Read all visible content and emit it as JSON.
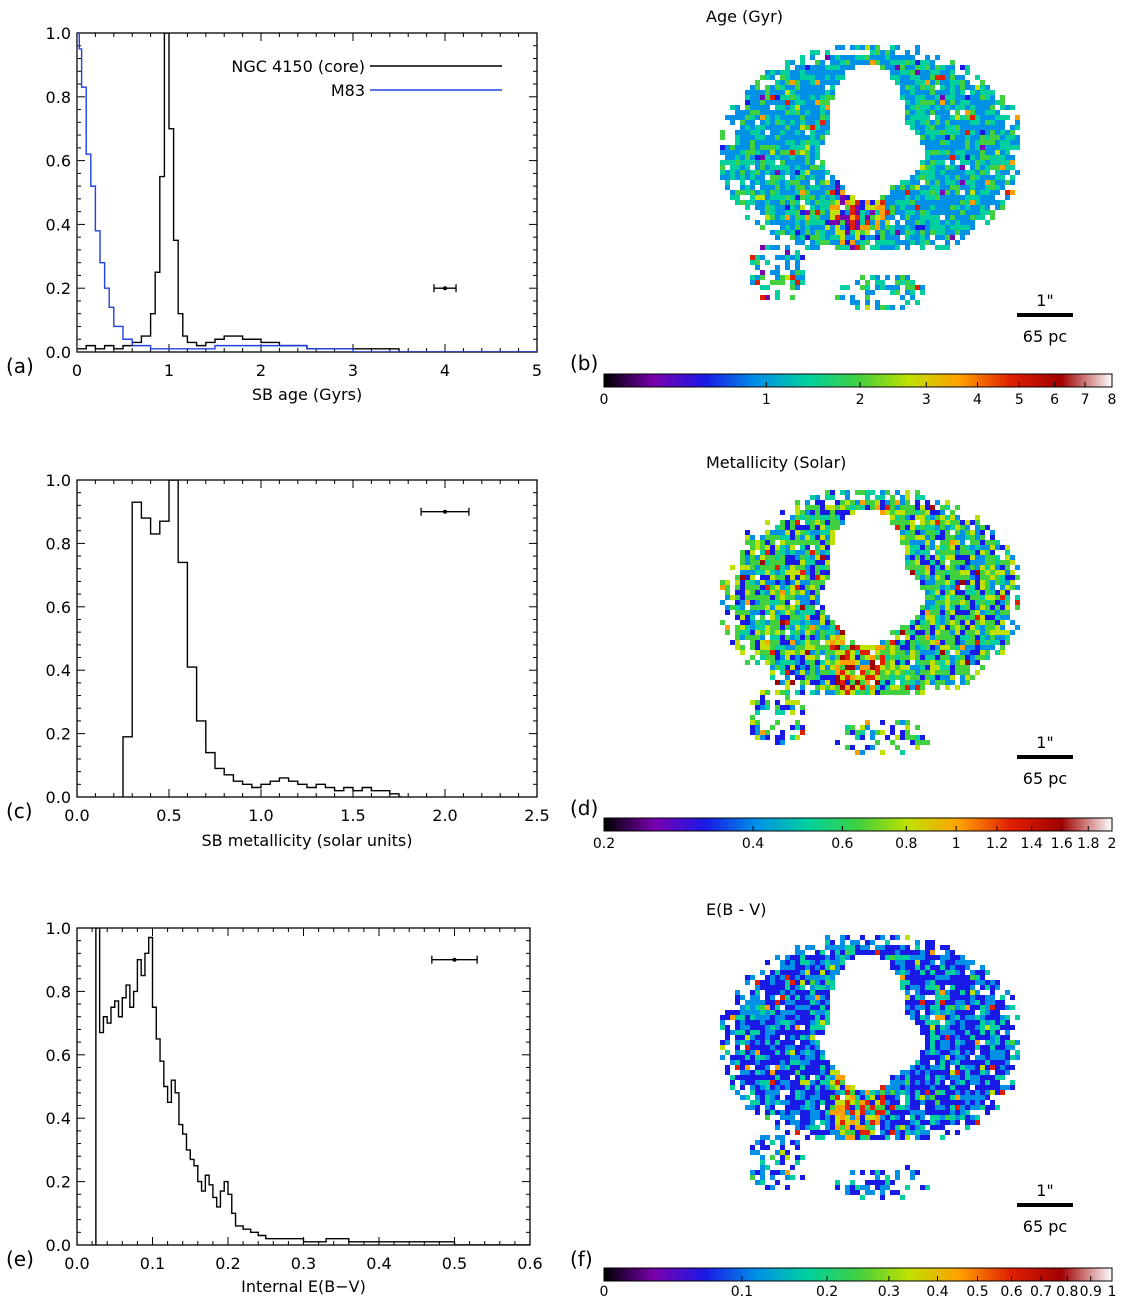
{
  "chart_data": [
    {
      "panel": "(a)",
      "type": "line",
      "xlabel": "SB age (Gyrs)",
      "ylabel": "",
      "xlim": [
        0,
        5
      ],
      "ylim": [
        0,
        1.0
      ],
      "xticks": [
        "0",
        "1",
        "2",
        "3",
        "4",
        "5"
      ],
      "yticks": [
        "0.0",
        "0.2",
        "0.4",
        "0.6",
        "0.8",
        "1.0"
      ],
      "legend_position": "top-right",
      "series": [
        {
          "name": "NGC 4150 (core)",
          "color": "#000000",
          "x": [
            0.0,
            0.1,
            0.2,
            0.3,
            0.4,
            0.5,
            0.6,
            0.7,
            0.8,
            0.85,
            0.9,
            0.95,
            1.0,
            1.05,
            1.1,
            1.15,
            1.2,
            1.3,
            1.4,
            1.5,
            1.6,
            1.7,
            1.8,
            1.9,
            2.0,
            2.2,
            2.5,
            3.0,
            3.5,
            4.0,
            4.5,
            5.0
          ],
          "y": [
            0.01,
            0.02,
            0.01,
            0.02,
            0.01,
            0.02,
            0.03,
            0.05,
            0.12,
            0.25,
            0.55,
            1.0,
            0.7,
            0.35,
            0.12,
            0.05,
            0.03,
            0.02,
            0.03,
            0.04,
            0.05,
            0.05,
            0.04,
            0.04,
            0.03,
            0.02,
            0.01,
            0.01,
            0.0,
            0.0,
            0.0,
            0.0
          ]
        },
        {
          "name": "M83",
          "color": "#2040e0",
          "x": [
            0.0,
            0.025,
            0.05,
            0.1,
            0.15,
            0.2,
            0.25,
            0.3,
            0.35,
            0.4,
            0.5,
            0.6,
            0.8,
            1.0,
            1.5,
            2.0,
            2.5,
            3.0,
            4.0,
            5.0
          ],
          "y": [
            1.0,
            0.95,
            0.83,
            0.62,
            0.52,
            0.38,
            0.28,
            0.2,
            0.14,
            0.08,
            0.04,
            0.02,
            0.01,
            0.01,
            0.02,
            0.02,
            0.01,
            0.0,
            0.0,
            0.0
          ]
        }
      ],
      "errorbar": {
        "x": 4.0,
        "y": 0.2,
        "xerr": 0.12
      }
    },
    {
      "panel": "(b)",
      "type": "heatmap",
      "title": "Age (Gyr)",
      "colorbar_ticks": [
        "0",
        "1",
        "2",
        "3",
        "4",
        "5",
        "6",
        "7",
        "8"
      ],
      "colorbar_values": [
        0,
        1,
        2,
        3,
        4,
        5,
        6,
        7,
        8
      ],
      "scale_bar": {
        "top": "1\"",
        "bottom": "65 pc"
      }
    },
    {
      "panel": "(c)",
      "type": "line",
      "xlabel": "SB metallicity (solar units)",
      "ylabel": "",
      "xlim": [
        0,
        2.5
      ],
      "ylim": [
        0,
        1.0
      ],
      "xticks": [
        "0.0",
        "0.5",
        "1.0",
        "1.5",
        "2.0",
        "2.5"
      ],
      "yticks": [
        "0.0",
        "0.2",
        "0.4",
        "0.6",
        "0.8",
        "1.0"
      ],
      "series": [
        {
          "color": "#000000",
          "x": [
            0.25,
            0.3,
            0.35,
            0.4,
            0.45,
            0.5,
            0.55,
            0.6,
            0.65,
            0.7,
            0.75,
            0.8,
            0.85,
            0.9,
            0.95,
            1.0,
            1.05,
            1.1,
            1.15,
            1.2,
            1.25,
            1.3,
            1.35,
            1.4,
            1.45,
            1.5,
            1.55,
            1.6,
            1.65,
            1.7,
            1.75
          ],
          "y": [
            0.19,
            0.93,
            0.88,
            0.83,
            0.87,
            1.0,
            0.74,
            0.41,
            0.24,
            0.14,
            0.09,
            0.07,
            0.05,
            0.04,
            0.03,
            0.04,
            0.05,
            0.06,
            0.05,
            0.04,
            0.03,
            0.04,
            0.03,
            0.02,
            0.03,
            0.02,
            0.03,
            0.02,
            0.02,
            0.01,
            0.0
          ]
        }
      ],
      "errorbar": {
        "x": 2.0,
        "y": 0.9,
        "xerr": 0.13
      }
    },
    {
      "panel": "(d)",
      "type": "heatmap",
      "title": "Metallicity (Solar)",
      "colorbar_ticks": [
        "0.2",
        "0.4",
        "0.6",
        "0.8",
        "1",
        "1.2",
        "1.4",
        "1.6",
        "1.8",
        "2"
      ],
      "colorbar_values": [
        0.2,
        0.4,
        0.6,
        0.8,
        1.0,
        1.2,
        1.4,
        1.6,
        1.8,
        2.0
      ],
      "scale_bar": {
        "top": "1\"",
        "bottom": "65 pc"
      }
    },
    {
      "panel": "(e)",
      "type": "line",
      "xlabel": "Internal E(B−V)",
      "ylabel": "",
      "xlim": [
        0,
        0.6
      ],
      "ylim": [
        0,
        1.0
      ],
      "xticks": [
        "0.0",
        "0.1",
        "0.2",
        "0.3",
        "0.4",
        "0.5",
        "0.6"
      ],
      "yticks": [
        "0.0",
        "0.2",
        "0.4",
        "0.6",
        "0.8",
        "1.0"
      ],
      "series": [
        {
          "color": "#000000",
          "x": [
            0.025,
            0.03,
            0.035,
            0.04,
            0.045,
            0.05,
            0.055,
            0.06,
            0.065,
            0.07,
            0.075,
            0.08,
            0.085,
            0.09,
            0.095,
            0.1,
            0.105,
            0.11,
            0.115,
            0.12,
            0.125,
            0.13,
            0.135,
            0.14,
            0.145,
            0.15,
            0.155,
            0.16,
            0.165,
            0.17,
            0.175,
            0.18,
            0.185,
            0.19,
            0.195,
            0.2,
            0.205,
            0.21,
            0.22,
            0.23,
            0.24,
            0.25,
            0.27,
            0.3,
            0.33,
            0.36,
            0.4,
            0.45,
            0.5,
            0.55,
            0.6
          ],
          "y": [
            1.0,
            0.67,
            0.72,
            0.7,
            0.75,
            0.77,
            0.72,
            0.78,
            0.82,
            0.75,
            0.8,
            0.9,
            0.85,
            0.92,
            0.97,
            0.75,
            0.65,
            0.58,
            0.5,
            0.45,
            0.52,
            0.48,
            0.38,
            0.35,
            0.3,
            0.27,
            0.25,
            0.2,
            0.17,
            0.22,
            0.19,
            0.15,
            0.12,
            0.17,
            0.2,
            0.16,
            0.1,
            0.06,
            0.05,
            0.04,
            0.03,
            0.02,
            0.02,
            0.01,
            0.02,
            0.01,
            0.01,
            0.01,
            0.0,
            0.0,
            0.0
          ]
        }
      ],
      "errorbar": {
        "x": 0.5,
        "y": 0.9,
        "xerr": 0.03
      }
    },
    {
      "panel": "(f)",
      "type": "heatmap",
      "title": "E(B - V)",
      "colorbar_ticks": [
        "0",
        "0.1",
        "0.2",
        "0.3",
        "0.4",
        "0.5",
        "0.6",
        "0.7",
        "0.8",
        "0.9",
        "1"
      ],
      "colorbar_values": [
        0,
        0.1,
        0.2,
        0.3,
        0.4,
        0.5,
        0.6,
        0.7,
        0.8,
        0.9,
        1.0
      ],
      "scale_bar": {
        "top": "1\"",
        "bottom": "65 pc"
      }
    }
  ],
  "colormap": [
    "#000000",
    "#7a00b0",
    "#1a1ae6",
    "#0090e6",
    "#00d0a0",
    "#40d040",
    "#c0e000",
    "#ffa000",
    "#e02000",
    "#a00000",
    "#ffffff"
  ]
}
